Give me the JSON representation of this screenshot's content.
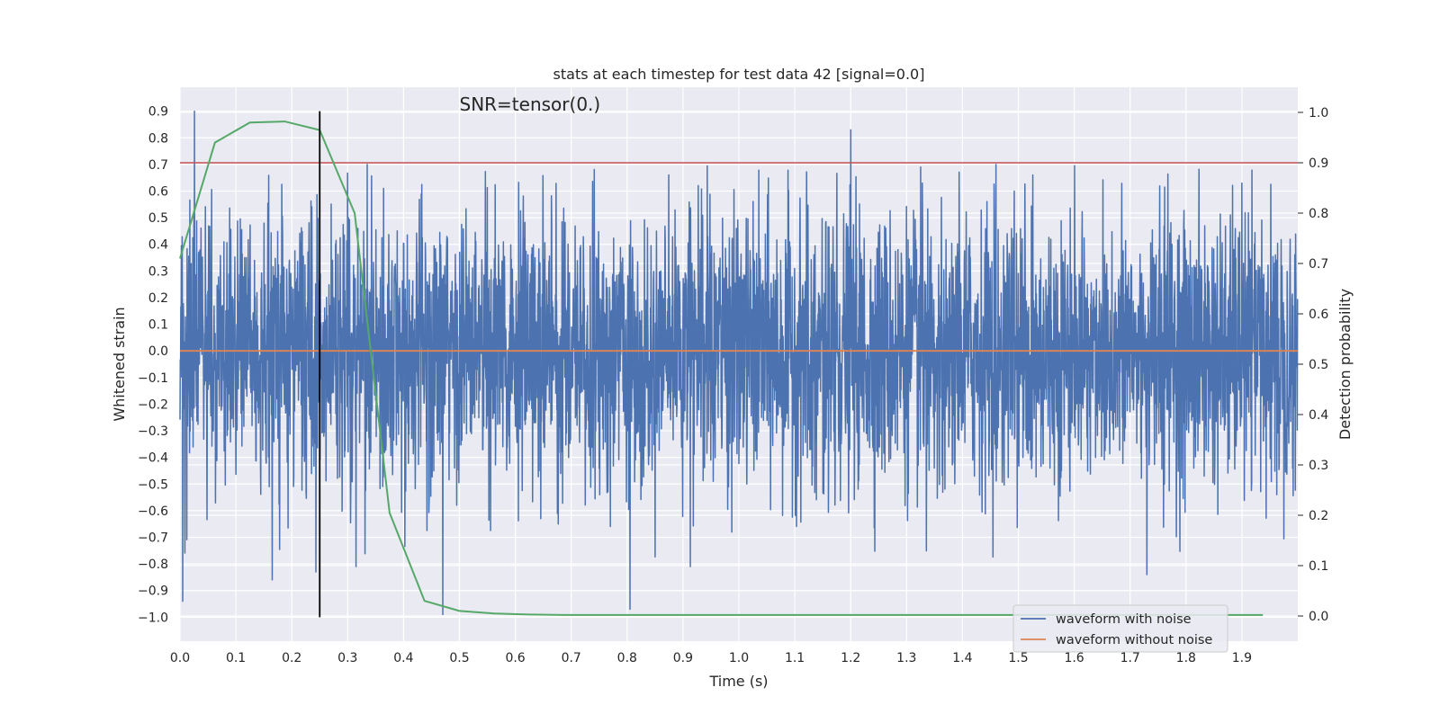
{
  "chart_data": {
    "type": "line",
    "title": "stats at each timestep for test data 42 [signal=0.0]",
    "annotation": "SNR=tensor(0.)",
    "xlabel": "Time (s)",
    "ylabel": "Whitened strain",
    "y2label": "Detection probability",
    "xlim": [
      0.0,
      2.0
    ],
    "ylim": [
      -1.09,
      0.99
    ],
    "y2lim": [
      -0.05,
      1.05
    ],
    "x_ticks": [
      0.0,
      0.1,
      0.2,
      0.3,
      0.4,
      0.5,
      0.6,
      0.7,
      0.8,
      0.9,
      1.0,
      1.1,
      1.2,
      1.3,
      1.4,
      1.5,
      1.6,
      1.7,
      1.8,
      1.9
    ],
    "x_tick_labels": [
      "0.0",
      "0.1",
      "0.2",
      "0.3",
      "0.4",
      "0.5",
      "0.6",
      "0.7",
      "0.8",
      "0.9",
      "1.0",
      "1.1",
      "1.2",
      "1.3",
      "1.4",
      "1.5",
      "1.6",
      "1.7",
      "1.8",
      "1.9"
    ],
    "y_ticks": [
      0.9,
      0.8,
      0.7,
      0.6,
      0.5,
      0.4,
      0.3,
      0.2,
      0.1,
      0.0,
      -0.1,
      -0.2,
      -0.3,
      -0.4,
      -0.5,
      -0.6,
      -0.7,
      -0.8,
      -0.9,
      -1.0
    ],
    "y_tick_labels": [
      "0.9",
      "0.8",
      "0.7",
      "0.6",
      "0.5",
      "0.4",
      "0.3",
      "0.2",
      "0.1",
      "0.0",
      "−0.1",
      "−0.2",
      "−0.3",
      "−0.4",
      "−0.5",
      "−0.6",
      "−0.7",
      "−0.8",
      "−0.9",
      "−1.0"
    ],
    "y2_ticks": [
      1.0,
      0.9,
      0.8,
      0.7,
      0.6,
      0.5,
      0.4,
      0.3,
      0.2,
      0.1,
      0.0
    ],
    "y2_tick_labels": [
      "1.0",
      "0.9",
      "0.8",
      "0.7",
      "0.6",
      "0.5",
      "0.4",
      "0.3",
      "0.2",
      "0.1",
      "0.0"
    ],
    "grid": true,
    "legend_position": "lower-right",
    "colors": {
      "noise": "#4c72b0",
      "clean": "#dd8452",
      "probability": "#55a868",
      "threshold": "#c44e52",
      "marker": "#000000",
      "plot_background": "#eaeaf2",
      "grid": "#ffffff"
    },
    "series": [
      {
        "name": "waveform with noise",
        "axis": "left",
        "sample_rate": 2048,
        "x_start": 0.0,
        "x_end": 1.9995,
        "std": 0.25,
        "peaks": [
          {
            "x": 0.005,
            "y": -0.94
          },
          {
            "x": 0.026,
            "y": 0.9
          },
          {
            "x": 0.165,
            "y": -0.86
          },
          {
            "x": 0.243,
            "y": -0.83
          },
          {
            "x": 0.315,
            "y": -0.81
          },
          {
            "x": 0.335,
            "y": 0.7
          },
          {
            "x": 0.47,
            "y": -0.99
          },
          {
            "x": 0.805,
            "y": -0.97
          },
          {
            "x": 0.913,
            "y": -0.81
          },
          {
            "x": 1.2,
            "y": 0.83
          },
          {
            "x": 1.46,
            "y": 0.7
          },
          {
            "x": 1.73,
            "y": -0.84
          },
          {
            "x": 1.9,
            "y": 0.63
          }
        ]
      },
      {
        "name": "waveform without noise",
        "axis": "left",
        "x": [
          0.0,
          2.0
        ],
        "y": [
          0.0,
          0.0
        ]
      },
      {
        "name": "detection probability",
        "axis": "right",
        "x": [
          0.0,
          0.0625,
          0.125,
          0.1875,
          0.25,
          0.3125,
          0.375,
          0.4375,
          0.5,
          0.5625,
          0.625,
          0.6875,
          0.75,
          0.8125,
          0.875,
          0.9375,
          1.0,
          1.0625,
          1.125,
          1.1875,
          1.25,
          1.3125,
          1.375,
          1.4375,
          1.5,
          1.5625,
          1.625,
          1.6875,
          1.75,
          1.8125,
          1.875,
          1.9375
        ],
        "y": [
          0.71,
          0.94,
          0.98,
          0.982,
          0.965,
          0.8,
          0.205,
          0.03,
          0.01,
          0.005,
          0.003,
          0.002,
          0.002,
          0.002,
          0.002,
          0.002,
          0.002,
          0.002,
          0.002,
          0.002,
          0.002,
          0.002,
          0.002,
          0.002,
          0.002,
          0.002,
          0.002,
          0.002,
          0.002,
          0.002,
          0.002,
          0.002
        ]
      }
    ],
    "threshold": {
      "axis": "right",
      "y": 0.9
    },
    "marker_line": {
      "x": 0.25,
      "y_from": -1.0,
      "y_to": 0.9
    },
    "legend": [
      {
        "label": "waveform with noise",
        "color": "#4c72b0"
      },
      {
        "label": "waveform without noise",
        "color": "#dd8452"
      }
    ]
  }
}
